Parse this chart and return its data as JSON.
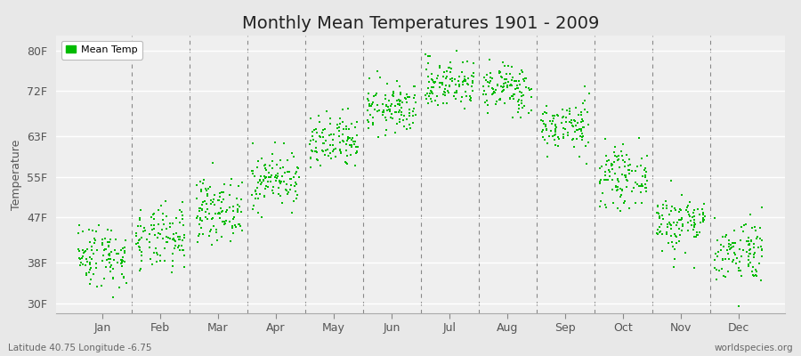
{
  "title": "Monthly Mean Temperatures 1901 - 2009",
  "ylabel": "Temperature",
  "xlabel_labels": [
    "Jan",
    "Feb",
    "Mar",
    "Apr",
    "May",
    "Jun",
    "Jul",
    "Aug",
    "Sep",
    "Oct",
    "Nov",
    "Dec"
  ],
  "ytick_labels": [
    "30F",
    "38F",
    "47F",
    "55F",
    "63F",
    "72F",
    "80F"
  ],
  "ytick_values": [
    30,
    38,
    47,
    55,
    63,
    72,
    80
  ],
  "ylim": [
    28,
    83
  ],
  "dot_color": "#00bb00",
  "bg_color": "#e8e8e8",
  "plot_bg_color": "#efefef",
  "grid_color": "#ffffff",
  "title_fontsize": 14,
  "axis_label_fontsize": 9,
  "tick_fontsize": 9,
  "footer_left": "Latitude 40.75 Longitude -6.75",
  "footer_right": "worldspecies.org",
  "legend_label": "Mean Temp",
  "start_year": 1901,
  "end_year": 2009,
  "monthly_means": [
    39.5,
    42.5,
    48.5,
    54.5,
    61.5,
    68.5,
    73.5,
    72.5,
    65.0,
    55.0,
    46.0,
    40.5
  ],
  "monthly_stds": [
    3.2,
    3.2,
    3.0,
    2.8,
    2.8,
    2.5,
    2.5,
    2.5,
    2.5,
    2.8,
    3.0,
    3.2
  ],
  "xlim": [
    0.2,
    12.8
  ],
  "vline_positions": [
    1.5,
    2.5,
    3.5,
    4.5,
    5.5,
    6.5,
    7.5,
    8.5,
    9.5,
    10.5,
    11.5
  ]
}
